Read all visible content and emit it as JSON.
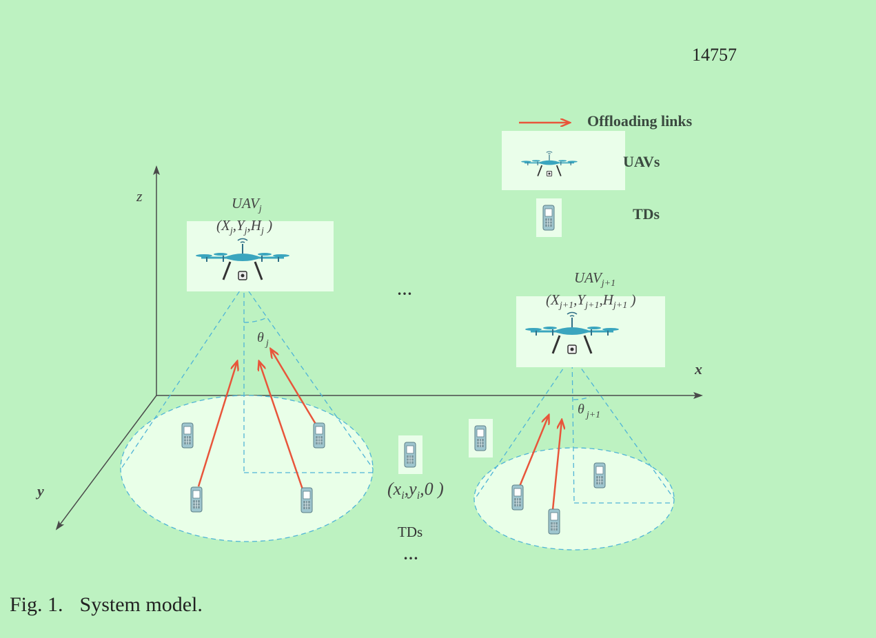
{
  "page_number": "14757",
  "legend": {
    "offloading": "Offloading links",
    "uavs": "UAVs",
    "tds": "TDs"
  },
  "axes": {
    "x": "x",
    "y": "y",
    "z": "z"
  },
  "uav_j": {
    "base": "UAV",
    "sub": "j",
    "coord_x": "X",
    "coord_y": "Y",
    "coord_h": "H",
    "theta": "θ",
    "theta_sub": "j"
  },
  "uav_j1": {
    "base": "UAV",
    "sub": "j+1",
    "coord_sub": "j+1",
    "coord_x": "X",
    "coord_y": "Y",
    "coord_h": "H",
    "theta": "θ",
    "theta_sub": "j+1"
  },
  "td_coord": {
    "x": "x",
    "y": "y",
    "sub": "i",
    "z": "0"
  },
  "td_label": "TDs",
  "ellipsis": "…",
  "caption": {
    "fig": "Fig. 1.",
    "text": "System model."
  },
  "colors": {
    "background": "#bdf2c1",
    "arrow": "#e8553a",
    "dashed": "#4fb4d6",
    "ellipse_fill": "#e9ffe8",
    "axis": "#4a4a4a"
  }
}
